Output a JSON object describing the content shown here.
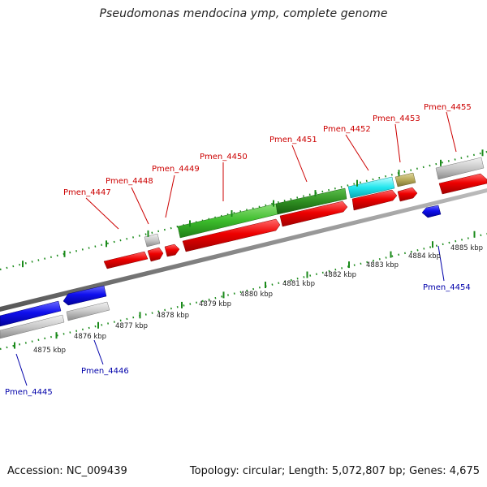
{
  "title": "Pseudomonas mendocina ymp, complete genome",
  "footer": {
    "accession": "Accession: NC_009439",
    "summary": "Topology: circular; Length: 5,072,807 bp; Genes: 4,675"
  },
  "colors": {
    "forward_strand_label": "#cc0000",
    "reverse_strand_label": "#0000aa",
    "backbone": "#808080",
    "gc_ticks": "#1a8a1a"
  },
  "ticks": [
    {
      "label": "4875 kbp"
    },
    {
      "label": "4876 kbp"
    },
    {
      "label": "4877 kbp"
    },
    {
      "label": "4878 kbp"
    },
    {
      "label": "4879 kbp"
    },
    {
      "label": "4880 kbp"
    },
    {
      "label": "4881 kbp"
    },
    {
      "label": "4882 kbp"
    },
    {
      "label": "4883 kbp"
    },
    {
      "label": "4884 kbp"
    },
    {
      "label": "4885 kbp"
    }
  ],
  "genes_top": [
    {
      "id": "Pmen_4447"
    },
    {
      "id": "Pmen_4448"
    },
    {
      "id": "Pmen_4449"
    },
    {
      "id": "Pmen_4450"
    },
    {
      "id": "Pmen_4451"
    },
    {
      "id": "Pmen_4452"
    },
    {
      "id": "Pmen_4453"
    },
    {
      "id": "Pmen_4455"
    }
  ],
  "genes_bottom": [
    {
      "id": "Pmen_4445"
    },
    {
      "id": "Pmen_4446"
    },
    {
      "id": "Pmen_4454"
    }
  ]
}
